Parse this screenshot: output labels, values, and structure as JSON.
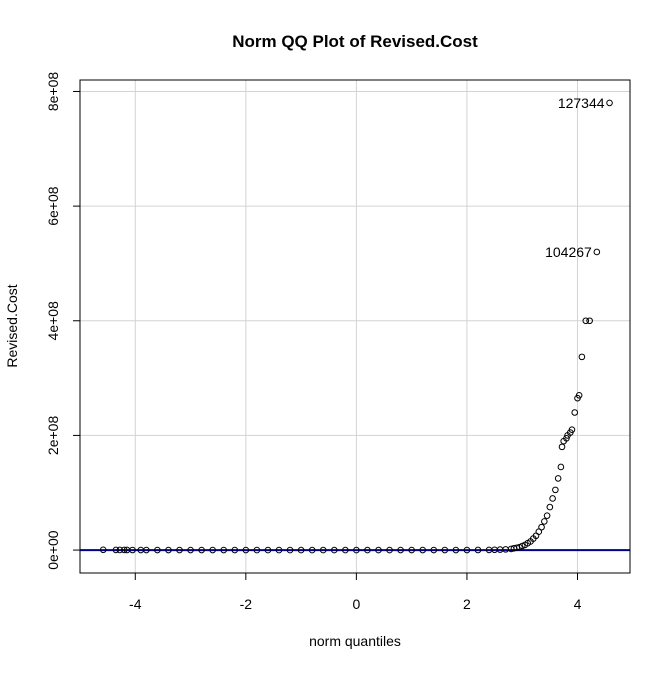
{
  "chart_data": {
    "type": "scatter",
    "title": "Norm QQ Plot of Revised.Cost",
    "xlabel": "norm quantiles",
    "ylabel": "Revised.Cost",
    "xlim": [
      -5.0,
      4.95
    ],
    "ylim": [
      -40000000,
      820000000
    ],
    "x_ticks": [
      -4,
      -2,
      0,
      2,
      4
    ],
    "x_tick_labels": [
      "-4",
      "-2",
      "0",
      "2",
      "4"
    ],
    "y_ticks": [
      0,
      200000000,
      400000000,
      600000000,
      800000000
    ],
    "y_tick_labels": [
      "0e+00",
      "2e+08",
      "4e+08",
      "6e+08",
      "8e+08"
    ],
    "grid": true,
    "reference_line": {
      "intercept": 0,
      "slope": 0,
      "color": "#00008b"
    },
    "point_color": "#000000",
    "point_labels": [
      {
        "label": "127344",
        "x": 4.58,
        "y": 780000000
      },
      {
        "label": "104267",
        "x": 4.35,
        "y": 520000000
      }
    ],
    "points": [
      [
        -4.58,
        500000
      ],
      [
        -4.35,
        300000
      ],
      [
        -4.28,
        200000
      ],
      [
        -4.2,
        250000
      ],
      [
        -4.15,
        150000
      ],
      [
        -4.05,
        100000
      ],
      [
        -3.9,
        80000
      ],
      [
        -3.8,
        60000
      ],
      [
        -3.6,
        50000
      ],
      [
        -3.4,
        40000
      ],
      [
        -3.2,
        30000
      ],
      [
        -3.0,
        25000
      ],
      [
        -2.8,
        20000
      ],
      [
        -2.6,
        20000
      ],
      [
        -2.4,
        18000
      ],
      [
        -2.2,
        15000
      ],
      [
        -2.0,
        15000
      ],
      [
        -1.8,
        14000
      ],
      [
        -1.6,
        12000
      ],
      [
        -1.4,
        12000
      ],
      [
        -1.2,
        11000
      ],
      [
        -1.0,
        10000
      ],
      [
        -0.8,
        10000
      ],
      [
        -0.6,
        9000
      ],
      [
        -0.4,
        9000
      ],
      [
        -0.2,
        8000
      ],
      [
        0.0,
        8000
      ],
      [
        0.2,
        9000
      ],
      [
        0.4,
        10000
      ],
      [
        0.6,
        12000
      ],
      [
        0.8,
        15000
      ],
      [
        1.0,
        18000
      ],
      [
        1.2,
        22000
      ],
      [
        1.4,
        28000
      ],
      [
        1.6,
        35000
      ],
      [
        1.8,
        50000
      ],
      [
        2.0,
        80000
      ],
      [
        2.2,
        150000
      ],
      [
        2.4,
        300000
      ],
      [
        2.5,
        500000
      ],
      [
        2.6,
        800000
      ],
      [
        2.7,
        1200000
      ],
      [
        2.8,
        2000000
      ],
      [
        2.85,
        3000000
      ],
      [
        2.9,
        4000000
      ],
      [
        2.95,
        5000000
      ],
      [
        3.0,
        7000000
      ],
      [
        3.05,
        9000000
      ],
      [
        3.1,
        12000000
      ],
      [
        3.15,
        15000000
      ],
      [
        3.2,
        20000000
      ],
      [
        3.25,
        25000000
      ],
      [
        3.3,
        32000000
      ],
      [
        3.35,
        40000000
      ],
      [
        3.4,
        50000000
      ],
      [
        3.45,
        60000000
      ],
      [
        3.5,
        75000000
      ],
      [
        3.55,
        90000000
      ],
      [
        3.6,
        105000000
      ],
      [
        3.65,
        125000000
      ],
      [
        3.7,
        145000000
      ],
      [
        3.72,
        180000000
      ],
      [
        3.75,
        190000000
      ],
      [
        3.8,
        195000000
      ],
      [
        3.82,
        200000000
      ],
      [
        3.87,
        205000000
      ],
      [
        3.9,
        210000000
      ],
      [
        3.95,
        240000000
      ],
      [
        4.0,
        265000000
      ],
      [
        4.03,
        270000000
      ],
      [
        4.08,
        337000000
      ],
      [
        4.15,
        400000000
      ],
      [
        4.22,
        400000000
      ],
      [
        4.35,
        520000000
      ],
      [
        4.58,
        780000000
      ]
    ]
  }
}
